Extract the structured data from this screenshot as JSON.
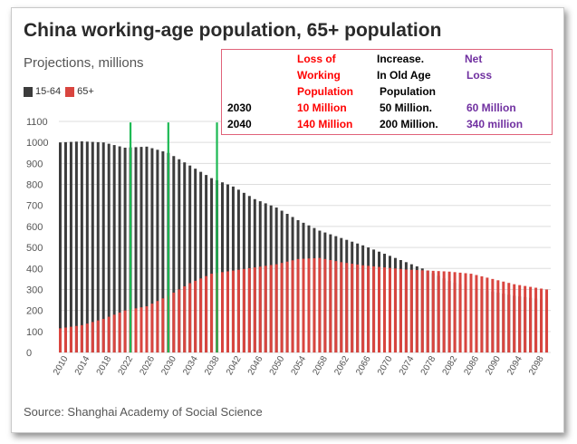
{
  "title": "China working-age population, 65+ population",
  "subtitle": "Projections, millions",
  "source": "Source: Shanghai Academy of Social Science",
  "colors": {
    "working_age": "#3c3c3c",
    "elderly": "#d9453f",
    "marker_lines": "#1db954",
    "grid": "#dddddd",
    "annotation_border": "#e0637a",
    "red_text": "#ff0000",
    "purple_text": "#7030a0"
  },
  "annotation": {
    "col1_header": [
      "Loss of",
      "Working",
      "Population"
    ],
    "col2_header": [
      "Increase.",
      "In Old Age",
      "Population"
    ],
    "col3_header": [
      "Net",
      "Loss"
    ],
    "rows": [
      {
        "year": "2030",
        "loss": "10 Million",
        "increase": "50 Million.",
        "net": "60 Million"
      },
      {
        "year": "2040",
        "loss": "140 Million",
        "increase": "200 Million.",
        "net": "340 million"
      }
    ]
  },
  "chart_data": {
    "type": "bar",
    "title": "China working-age population, 65+ population",
    "subtitle": "Projections, millions",
    "xlabel": "",
    "ylabel": "",
    "ylim": [
      0,
      1100
    ],
    "yticks": [
      0,
      100,
      200,
      300,
      400,
      500,
      600,
      700,
      800,
      900,
      1000,
      1100
    ],
    "grid": true,
    "legend_position": "top-left",
    "x_start": 2010,
    "x_end": 2100,
    "xtick_labels": [
      "2010",
      "2014",
      "2018",
      "2022",
      "2026",
      "2030",
      "2034",
      "2038",
      "2042",
      "2046",
      "2050",
      "2054",
      "2058",
      "2062",
      "2066",
      "2070",
      "2074",
      "2078",
      "2082",
      "2086",
      "2090",
      "2094",
      "2098"
    ],
    "marker_years": [
      2023,
      2030,
      2039
    ],
    "series": [
      {
        "name": "15-64",
        "years": [
          2010,
          2014,
          2018,
          2022,
          2026,
          2030,
          2034,
          2038,
          2042,
          2046,
          2050,
          2054,
          2058,
          2062,
          2066,
          2070,
          2074,
          2078,
          2082,
          2086,
          2090,
          2094,
          2100
        ],
        "values": [
          1000,
          1005,
          1000,
          975,
          980,
          950,
          890,
          830,
          790,
          730,
          690,
          630,
          580,
          545,
          510,
          470,
          430,
          390,
          340,
          310,
          290,
          270,
          250
        ]
      },
      {
        "name": "65+",
        "years": [
          2010,
          2014,
          2018,
          2022,
          2026,
          2030,
          2034,
          2038,
          2042,
          2046,
          2050,
          2054,
          2058,
          2062,
          2066,
          2070,
          2074,
          2078,
          2082,
          2086,
          2090,
          2094,
          2100
        ],
        "values": [
          115,
          130,
          160,
          200,
          220,
          270,
          330,
          375,
          390,
          405,
          420,
          445,
          450,
          430,
          415,
          405,
          395,
          390,
          385,
          375,
          350,
          325,
          300
        ]
      }
    ]
  }
}
